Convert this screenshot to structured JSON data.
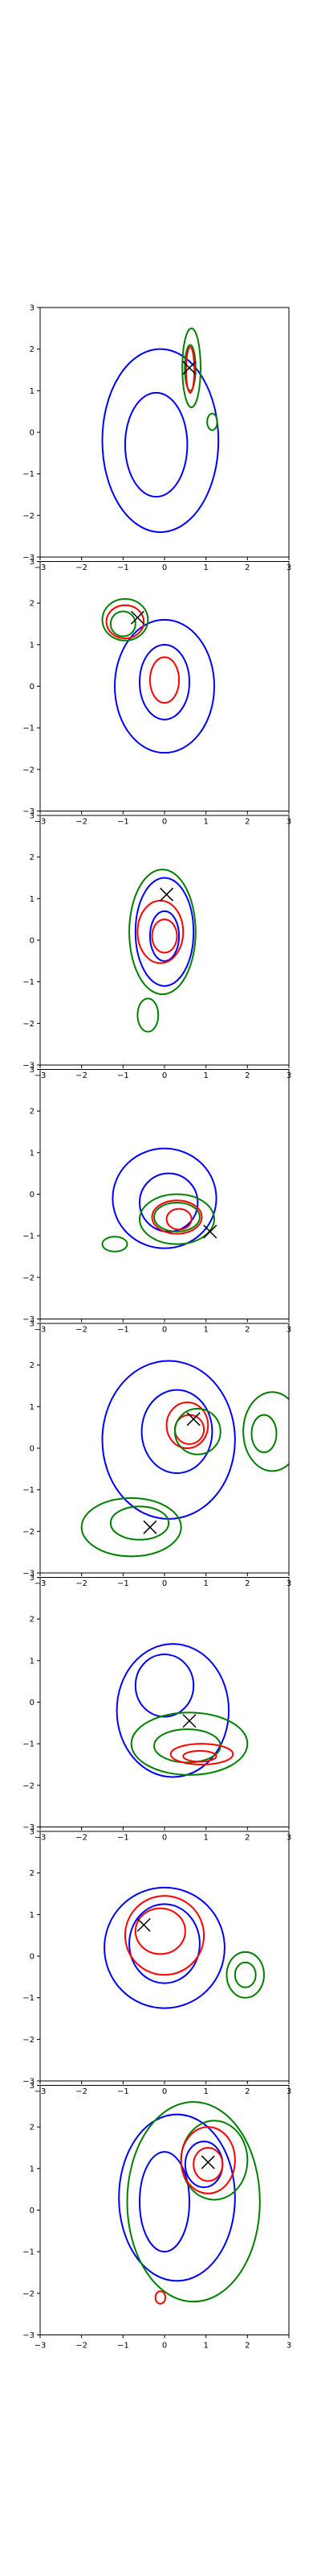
{
  "colors": {
    "blue": "#0000ff",
    "red": "#ff0000",
    "green": "#008000",
    "marker": "#000000",
    "axes": "#000000"
  },
  "chart_data": [
    {
      "type": "contour",
      "xlim": [
        -3,
        3
      ],
      "ylim": [
        -3,
        3
      ],
      "x_ticks": [
        "−3",
        "−2",
        "−1",
        "0",
        "1",
        "2",
        "3"
      ],
      "y_ticks": [
        "3",
        "2",
        "1",
        "0",
        "−1",
        "−2",
        "−3"
      ],
      "contours": [
        {
          "color": "blue",
          "cx": -0.1,
          "cy": -0.2,
          "rx": 1.4,
          "ry": 2.2
        },
        {
          "color": "blue",
          "cx": -0.2,
          "cy": -0.3,
          "rx": 0.75,
          "ry": 1.25
        },
        {
          "color": "green",
          "cx": 0.65,
          "cy": 1.55,
          "rx": 0.22,
          "ry": 0.95
        },
        {
          "color": "green",
          "cx": 0.62,
          "cy": 1.55,
          "rx": 0.13,
          "ry": 0.55
        },
        {
          "color": "green",
          "cx": 1.15,
          "cy": 0.25,
          "rx": 0.12,
          "ry": 0.2
        },
        {
          "color": "red",
          "cx": 0.62,
          "cy": 1.5,
          "rx": 0.1,
          "ry": 0.55
        }
      ],
      "markers": [
        {
          "x": 0.6,
          "y": 1.55
        }
      ]
    },
    {
      "type": "contour",
      "xlim": [
        -3,
        3
      ],
      "ylim": [
        -3,
        3
      ],
      "x_ticks": [
        "−3",
        "−2",
        "−1",
        "0",
        "1",
        "2",
        "3"
      ],
      "y_ticks": [
        "3",
        "2",
        "1",
        "0",
        "−1",
        "−2",
        "−3"
      ],
      "contours": [
        {
          "color": "blue",
          "cx": 0.0,
          "cy": 0.0,
          "rx": 1.2,
          "ry": 1.6
        },
        {
          "color": "blue",
          "cx": 0.0,
          "cy": 0.1,
          "rx": 0.6,
          "ry": 0.9
        },
        {
          "color": "green",
          "cx": -0.95,
          "cy": 1.6,
          "rx": 0.55,
          "ry": 0.5
        },
        {
          "color": "green",
          "cx": -1.0,
          "cy": 1.5,
          "rx": 0.3,
          "ry": 0.3
        },
        {
          "color": "red",
          "cx": -0.95,
          "cy": 1.55,
          "rx": 0.45,
          "ry": 0.4
        },
        {
          "color": "red",
          "cx": 0.0,
          "cy": 0.15,
          "rx": 0.35,
          "ry": 0.55
        }
      ],
      "markers": [
        {
          "x": -0.65,
          "y": 1.65
        }
      ]
    },
    {
      "type": "contour",
      "xlim": [
        -3,
        3
      ],
      "ylim": [
        -3,
        3
      ],
      "x_ticks": [
        "−3",
        "−2",
        "−1",
        "0",
        "1",
        "2",
        "3"
      ],
      "y_ticks": [
        "3",
        "2",
        "1",
        "0",
        "−1",
        "−2",
        "−3"
      ],
      "contours": [
        {
          "color": "blue",
          "cx": 0.0,
          "cy": 0.2,
          "rx": 0.7,
          "ry": 1.3
        },
        {
          "color": "blue",
          "cx": 0.0,
          "cy": 0.1,
          "rx": 0.35,
          "ry": 0.6
        },
        {
          "color": "green",
          "cx": -0.05,
          "cy": 0.2,
          "rx": 0.8,
          "ry": 1.5
        },
        {
          "color": "green",
          "cx": -0.4,
          "cy": -1.8,
          "rx": 0.25,
          "ry": 0.4
        },
        {
          "color": "red",
          "cx": -0.1,
          "cy": 0.2,
          "rx": 0.55,
          "ry": 0.75
        },
        {
          "color": "red",
          "cx": 0.0,
          "cy": 0.1,
          "rx": 0.3,
          "ry": 0.4
        }
      ],
      "markers": [
        {
          "x": 0.05,
          "y": 1.1
        }
      ]
    },
    {
      "type": "contour",
      "xlim": [
        -3,
        3
      ],
      "ylim": [
        -3,
        3
      ],
      "x_ticks": [
        "−3",
        "−2",
        "−1",
        "0",
        "1",
        "2",
        "3"
      ],
      "y_ticks": [
        "3",
        "2",
        "1",
        "0",
        "−1",
        "−2",
        "−3"
      ],
      "contours": [
        {
          "color": "blue",
          "cx": 0.0,
          "cy": -0.1,
          "rx": 1.25,
          "ry": 1.2
        },
        {
          "color": "blue",
          "cx": 0.1,
          "cy": -0.2,
          "rx": 0.7,
          "ry": 0.7
        },
        {
          "color": "green",
          "cx": 0.3,
          "cy": -0.6,
          "rx": 0.9,
          "ry": 0.6
        },
        {
          "color": "green",
          "cx": 0.3,
          "cy": -0.55,
          "rx": 0.55,
          "ry": 0.35
        },
        {
          "color": "green",
          "cx": -1.2,
          "cy": -1.2,
          "rx": 0.3,
          "ry": 0.18
        },
        {
          "color": "red",
          "cx": 0.3,
          "cy": -0.55,
          "rx": 0.6,
          "ry": 0.4
        },
        {
          "color": "red",
          "cx": 0.35,
          "cy": -0.6,
          "rx": 0.3,
          "ry": 0.25
        }
      ],
      "markers": [
        {
          "x": 1.1,
          "y": -0.9
        }
      ]
    },
    {
      "type": "contour",
      "xlim": [
        -3,
        3
      ],
      "ylim": [
        -3,
        3
      ],
      "x_ticks": [
        "−3",
        "−2",
        "−1",
        "0",
        "1",
        "2",
        "3"
      ],
      "y_ticks": [
        "3",
        "2",
        "1",
        "0",
        "−1",
        "−2",
        "−3"
      ],
      "contours": [
        {
          "color": "blue",
          "cx": 0.1,
          "cy": 0.2,
          "rx": 1.6,
          "ry": 1.9
        },
        {
          "color": "blue",
          "cx": 0.3,
          "cy": 0.4,
          "rx": 0.85,
          "ry": 1.0
        },
        {
          "color": "red",
          "cx": 0.55,
          "cy": 0.55,
          "rx": 0.5,
          "ry": 0.55
        },
        {
          "color": "red",
          "cx": 0.6,
          "cy": 0.45,
          "rx": 0.35,
          "ry": 0.35
        },
        {
          "color": "green",
          "cx": 0.8,
          "cy": 0.4,
          "rx": 0.55,
          "ry": 0.55
        },
        {
          "color": "green",
          "cx": 2.6,
          "cy": 0.4,
          "rx": 0.7,
          "ry": 0.95
        },
        {
          "color": "green",
          "cx": 2.4,
          "cy": 0.35,
          "rx": 0.3,
          "ry": 0.45
        },
        {
          "color": "green",
          "cx": -0.8,
          "cy": -1.9,
          "rx": 1.2,
          "ry": 0.7
        },
        {
          "color": "green",
          "cx": -0.6,
          "cy": -1.8,
          "rx": 0.7,
          "ry": 0.4
        }
      ],
      "markers": [
        {
          "x": 0.7,
          "y": 0.7
        },
        {
          "x": -0.35,
          "y": -1.9
        }
      ]
    },
    {
      "type": "contour",
      "xlim": [
        -3,
        3
      ],
      "ylim": [
        -3,
        3
      ],
      "x_ticks": [
        "−3",
        "−2",
        "−1",
        "0",
        "1",
        "2",
        "3"
      ],
      "y_ticks": [
        "3",
        "2",
        "1",
        "0",
        "−1",
        "−2",
        "−3"
      ],
      "contours": [
        {
          "color": "blue",
          "cx": 0.2,
          "cy": -0.2,
          "rx": 1.35,
          "ry": 1.6
        },
        {
          "color": "blue",
          "cx": 0.0,
          "cy": 0.4,
          "rx": 0.7,
          "ry": 0.75
        },
        {
          "color": "green",
          "cx": 0.6,
          "cy": -1.0,
          "rx": 1.4,
          "ry": 0.75
        },
        {
          "color": "green",
          "cx": 0.55,
          "cy": -1.05,
          "rx": 0.8,
          "ry": 0.4
        },
        {
          "color": "red",
          "cx": 0.9,
          "cy": -1.25,
          "rx": 0.75,
          "ry": 0.25
        },
        {
          "color": "red",
          "cx": 0.85,
          "cy": -1.3,
          "rx": 0.4,
          "ry": 0.13
        }
      ],
      "markers": [
        {
          "x": 0.6,
          "y": -0.45
        }
      ]
    },
    {
      "type": "contour",
      "xlim": [
        -3,
        3
      ],
      "ylim": [
        -3,
        3
      ],
      "x_ticks": [
        "−3",
        "−2",
        "−1",
        "0",
        "1",
        "2",
        "3"
      ],
      "y_ticks": [
        "3",
        "2",
        "1",
        "0",
        "−1",
        "−2",
        "−3"
      ],
      "contours": [
        {
          "color": "blue",
          "cx": 0.0,
          "cy": 0.2,
          "rx": 1.45,
          "ry": 1.45
        },
        {
          "color": "blue",
          "cx": 0.0,
          "cy": 0.3,
          "rx": 0.85,
          "ry": 0.95
        },
        {
          "color": "red",
          "cx": 0.0,
          "cy": 0.5,
          "rx": 0.95,
          "ry": 0.95
        },
        {
          "color": "red",
          "cx": -0.1,
          "cy": 0.6,
          "rx": 0.6,
          "ry": 0.55
        },
        {
          "color": "green",
          "cx": 1.95,
          "cy": -0.45,
          "rx": 0.45,
          "ry": 0.55
        },
        {
          "color": "green",
          "cx": 1.95,
          "cy": -0.45,
          "rx": 0.25,
          "ry": 0.3
        }
      ],
      "markers": [
        {
          "x": -0.5,
          "y": 0.75
        }
      ]
    },
    {
      "type": "contour",
      "xlim": [
        -3,
        3
      ],
      "ylim": [
        -3,
        3
      ],
      "x_ticks": [
        "−3",
        "−2",
        "−1",
        "0",
        "1",
        "2",
        "3"
      ],
      "y_ticks": [
        "3",
        "2",
        "1",
        "0",
        "−1",
        "−2",
        "−3"
      ],
      "contours": [
        {
          "color": "blue",
          "cx": 0.3,
          "cy": 0.3,
          "rx": 1.4,
          "ry": 2.0
        },
        {
          "color": "blue",
          "cx": 0.0,
          "cy": 0.2,
          "rx": 0.6,
          "ry": 1.2
        },
        {
          "color": "blue",
          "cx": 0.95,
          "cy": 1.1,
          "rx": 0.45,
          "ry": 0.55
        },
        {
          "color": "green",
          "cx": 0.7,
          "cy": 0.2,
          "rx": 1.6,
          "ry": 2.4
        },
        {
          "color": "green",
          "cx": 1.2,
          "cy": 1.2,
          "rx": 0.8,
          "ry": 0.95
        },
        {
          "color": "red",
          "cx": 1.05,
          "cy": 1.2,
          "rx": 0.65,
          "ry": 0.8
        },
        {
          "color": "red",
          "cx": 1.05,
          "cy": 1.1,
          "rx": 0.35,
          "ry": 0.4
        },
        {
          "color": "red",
          "cx": -0.1,
          "cy": -2.1,
          "rx": 0.12,
          "ry": 0.15
        }
      ],
      "markers": [
        {
          "x": 1.05,
          "y": 1.15
        }
      ]
    }
  ]
}
